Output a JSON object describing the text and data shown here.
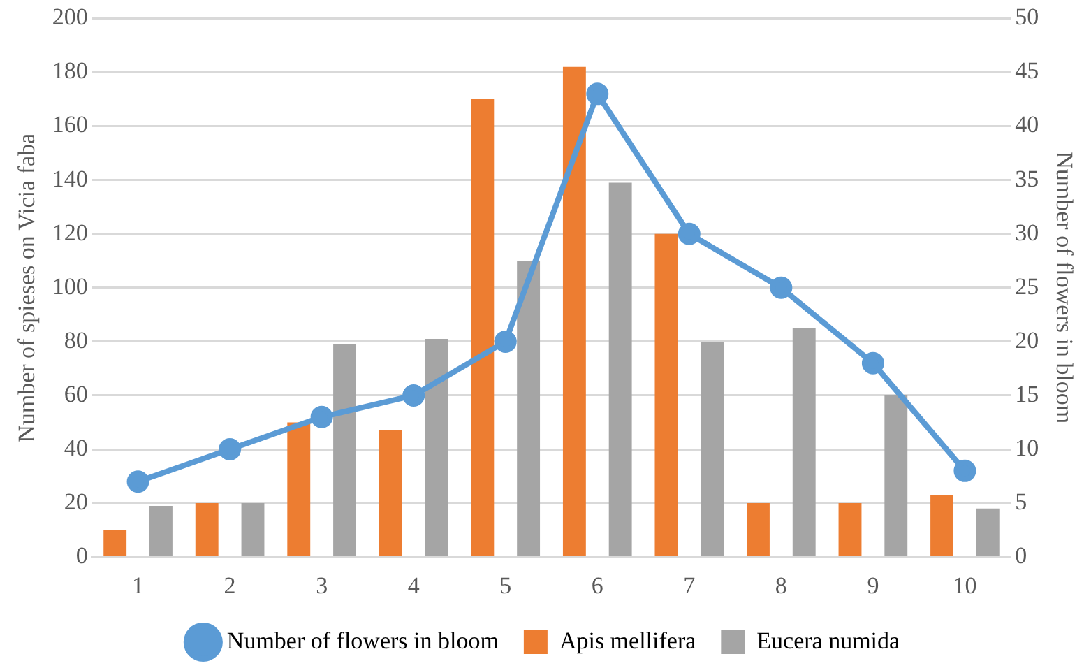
{
  "chart_data": {
    "type": "bar",
    "categories": [
      "1",
      "2",
      "3",
      "4",
      "5",
      "6",
      "7",
      "8",
      "9",
      "10"
    ],
    "ylabel": "Number of spieses on Vicia faba",
    "y2label": "Number of flowers in bloom",
    "ylim": [
      0,
      200
    ],
    "yticks": [
      0,
      20,
      40,
      60,
      80,
      100,
      120,
      140,
      160,
      180,
      200
    ],
    "y2lim": [
      0,
      50
    ],
    "y2ticks": [
      0,
      5,
      10,
      15,
      20,
      25,
      30,
      35,
      40,
      45,
      50
    ],
    "grid": "y",
    "legend": "bottom",
    "series": [
      {
        "name": "Apis mellifera",
        "color": "#ed7d31",
        "values": [
          10,
          20,
          50,
          47,
          170,
          182,
          120,
          20,
          20,
          23
        ]
      },
      {
        "name": "Eucera numida",
        "color": "#a5a5a5",
        "values": [
          19,
          20,
          79,
          81,
          110,
          139,
          80,
          85,
          60,
          18
        ]
      },
      {
        "name": "Number of flowers in bloom",
        "type": "line",
        "axis": "y2",
        "marker": "circle",
        "color": "#5b9bd5",
        "values": [
          7,
          10,
          13,
          15,
          20,
          43,
          30,
          25,
          18,
          8
        ]
      }
    ]
  }
}
